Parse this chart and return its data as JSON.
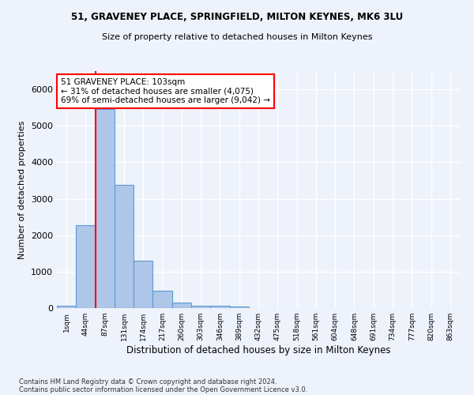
{
  "title1": "51, GRAVENEY PLACE, SPRINGFIELD, MILTON KEYNES, MK6 3LU",
  "title2": "Size of property relative to detached houses in Milton Keynes",
  "xlabel": "Distribution of detached houses by size in Milton Keynes",
  "ylabel": "Number of detached properties",
  "footer1": "Contains HM Land Registry data © Crown copyright and database right 2024.",
  "footer2": "Contains public sector information licensed under the Open Government Licence v3.0.",
  "bin_labels": [
    "1sqm",
    "44sqm",
    "87sqm",
    "131sqm",
    "174sqm",
    "217sqm",
    "260sqm",
    "303sqm",
    "346sqm",
    "389sqm",
    "432sqm",
    "475sqm",
    "518sqm",
    "561sqm",
    "604sqm",
    "648sqm",
    "691sqm",
    "734sqm",
    "777sqm",
    "820sqm",
    "863sqm"
  ],
  "bar_values": [
    60,
    2270,
    5450,
    3370,
    1300,
    480,
    160,
    75,
    55,
    45,
    0,
    0,
    0,
    0,
    0,
    0,
    0,
    0,
    0,
    0,
    0
  ],
  "bar_color": "#aec6e8",
  "bar_edge_color": "#5b9bd5",
  "vline_color": "red",
  "vline_x_index": 1.5,
  "annotation_text": "51 GRAVENEY PLACE: 103sqm\n← 31% of detached houses are smaller (4,075)\n69% of semi-detached houses are larger (9,042) →",
  "annotation_box_color": "white",
  "annotation_box_edgecolor": "red",
  "ylim_max": 6500,
  "bg_color": "#eef2fb",
  "grid_color": "white"
}
